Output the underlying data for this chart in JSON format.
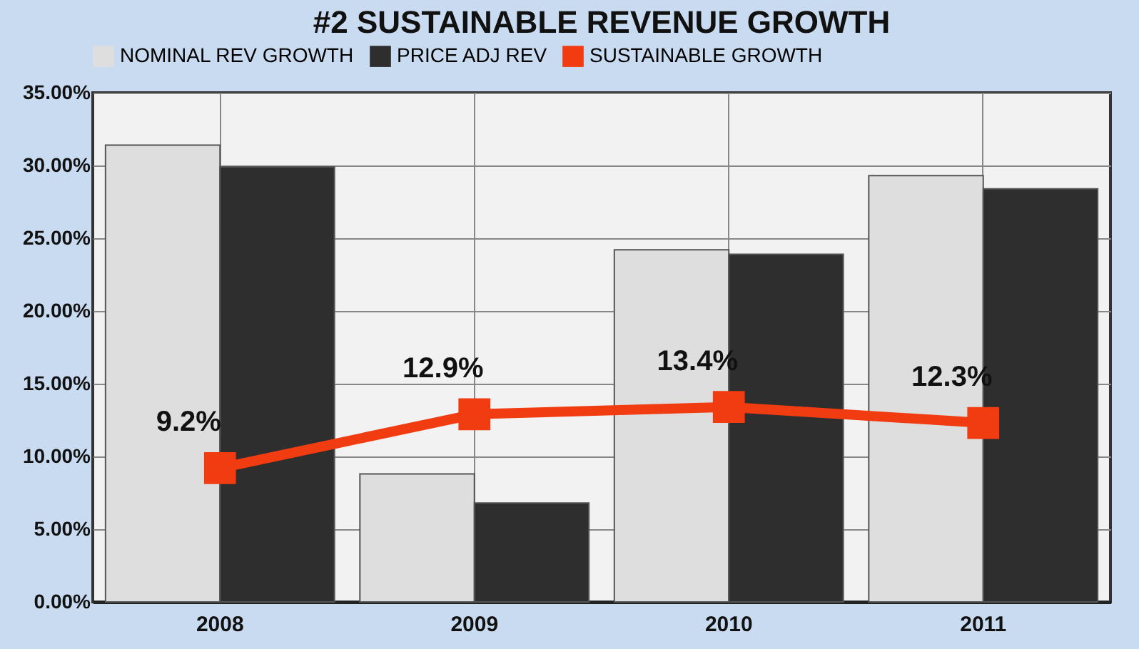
{
  "chart_data": {
    "type": "bar",
    "title": "#2  SUSTAINABLE REVENUE GROWTH",
    "categories": [
      "2008",
      "2009",
      "2010",
      "2011"
    ],
    "series": [
      {
        "name": "NOMINAL REV GROWTH",
        "color": "#dedede",
        "values": [
          31.4,
          8.8,
          24.2,
          29.3
        ]
      },
      {
        "name": "PRICE ADJ REV",
        "color": "#2e2e2e",
        "values": [
          29.9,
          6.8,
          23.9,
          28.4
        ]
      },
      {
        "name": "SUSTAINABLE GROWTH",
        "color": "#f03c10",
        "type": "line",
        "marker": "square",
        "values": [
          9.2,
          12.9,
          13.4,
          12.3
        ],
        "value_labels": [
          "9.2%",
          "12.9%",
          "13.4%",
          "12.3%"
        ]
      }
    ],
    "ylim": [
      0,
      35
    ],
    "yticks": [
      {
        "value": 0,
        "label": "0.00%"
      },
      {
        "value": 5,
        "label": "5.00%"
      },
      {
        "value": 10,
        "label": "10.00%"
      },
      {
        "value": 15,
        "label": "15.00%"
      },
      {
        "value": 20,
        "label": "20.00%"
      },
      {
        "value": 25,
        "label": "25.00%"
      },
      {
        "value": 30,
        "label": "30.00%"
      },
      {
        "value": 35,
        "label": "35.00%"
      }
    ],
    "grid": true,
    "legend": "top"
  }
}
